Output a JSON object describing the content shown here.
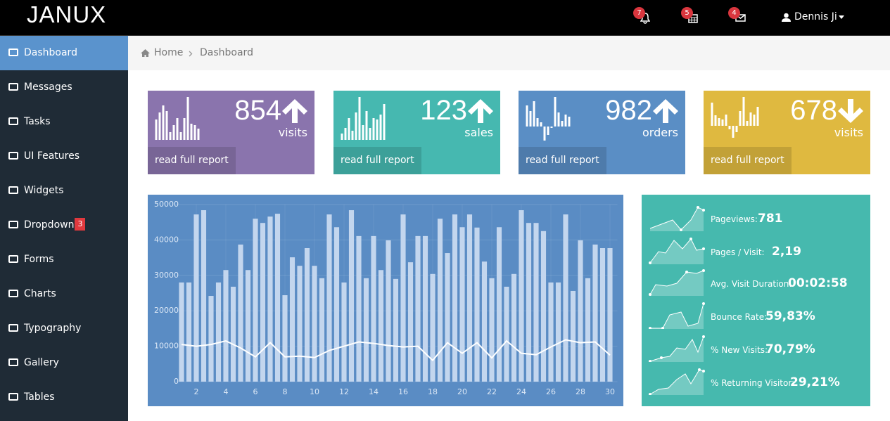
{
  "header": {
    "brand": "JANUX",
    "notifications": [
      "7",
      "5",
      "4"
    ],
    "user": "Dennis Ji"
  },
  "sidebar": {
    "items": [
      {
        "label": "Dashboard"
      },
      {
        "label": "Messages"
      },
      {
        "label": "Tasks"
      },
      {
        "label": "UI Features"
      },
      {
        "label": "Widgets"
      },
      {
        "label": "Dropdown",
        "badge": "3"
      },
      {
        "label": "Forms"
      },
      {
        "label": "Charts"
      },
      {
        "label": "Typography"
      },
      {
        "label": "Gallery"
      },
      {
        "label": "Tables"
      }
    ]
  },
  "breadcrumb": [
    "Home",
    "Dashboard"
  ],
  "tiles": [
    {
      "value": "854",
      "unit": "visits",
      "link": "read full report"
    },
    {
      "value": "123",
      "unit": "sales",
      "link": "read full report"
    },
    {
      "value": "982",
      "unit": "orders",
      "link": "read full report"
    },
    {
      "value": "678",
      "unit": "visits",
      "link": "read full report"
    }
  ],
  "stats": [
    {
      "label": "Pageviews:",
      "value": "781"
    },
    {
      "label": "Pages / Visit:",
      "value": "2,19"
    },
    {
      "label": "Avg. Visit Duration:",
      "value": "00:02:58"
    },
    {
      "label": "Bounce Rate:",
      "value": "59,83%"
    },
    {
      "label": "% New Visits:",
      "value": "70,79%"
    },
    {
      "label": "% Returning Visitor:",
      "value": "29,21%"
    }
  ],
  "chart_data": {
    "type": "bar",
    "series": [
      {
        "type": "bar",
        "color": "#c3d6ee",
        "x": [
          1,
          1.5,
          2,
          2.5,
          3,
          3.5,
          4,
          4.5,
          5,
          5.5,
          6,
          6.5,
          7,
          7.5,
          8,
          8.5,
          9,
          9.5,
          10,
          10.5,
          11,
          11.5,
          12,
          12.5,
          13,
          13.5,
          14,
          14.5,
          15,
          15.5,
          16,
          16.5,
          17,
          17.5,
          18,
          18.5,
          19,
          19.5,
          20,
          20.5,
          21,
          21.5,
          22,
          22.5,
          23,
          23.5,
          24,
          24.5,
          25,
          25.5,
          26,
          26.5,
          27,
          27.5,
          28,
          28.5,
          29,
          29.5,
          30
        ],
        "values": [
          28000,
          28000,
          47200,
          48400,
          24200,
          28000,
          31500,
          26800,
          38700,
          31500,
          46000,
          44800,
          46600,
          47400,
          24400,
          35100,
          32700,
          37700,
          32700,
          29200,
          47200,
          43600,
          28000,
          48400,
          41100,
          29200,
          41100,
          31500,
          39900,
          29000,
          47200,
          33700,
          41100,
          41100,
          30400,
          46000,
          36300,
          47200,
          43600,
          47200,
          43500,
          33900,
          29200,
          43600,
          26800,
          30400,
          48400,
          44800,
          44800,
          42500,
          28000,
          28000,
          47200,
          25600,
          39900,
          29200,
          38700,
          37700,
          37700
        ]
      },
      {
        "type": "line",
        "color": "#ffffff",
        "x": [
          1,
          2,
          3,
          4,
          5,
          6,
          7,
          8,
          9,
          10,
          11,
          12,
          13,
          14,
          15,
          16,
          17,
          18,
          19,
          20,
          21,
          22,
          23,
          24,
          25,
          26,
          27,
          28,
          29,
          30
        ],
        "values": [
          10500,
          10000,
          10500,
          11500,
          9500,
          7000,
          11000,
          7000,
          7200,
          6800,
          8800,
          10000,
          11200,
          10800,
          10200,
          9800,
          10000,
          6000,
          11000,
          8000,
          11000,
          6700,
          11500,
          8000,
          7600,
          9800,
          11800,
          11000,
          11200,
          7500
        ]
      }
    ],
    "xlim": [
      0.5,
      30.5
    ],
    "xticks": [
      2,
      4,
      6,
      8,
      10,
      12,
      14,
      16,
      18,
      20,
      22,
      24,
      26,
      28,
      30
    ],
    "ylim": [
      0,
      50000
    ],
    "yticks": [
      0,
      10000,
      20000,
      30000,
      40000,
      50000
    ],
    "grid": true
  }
}
